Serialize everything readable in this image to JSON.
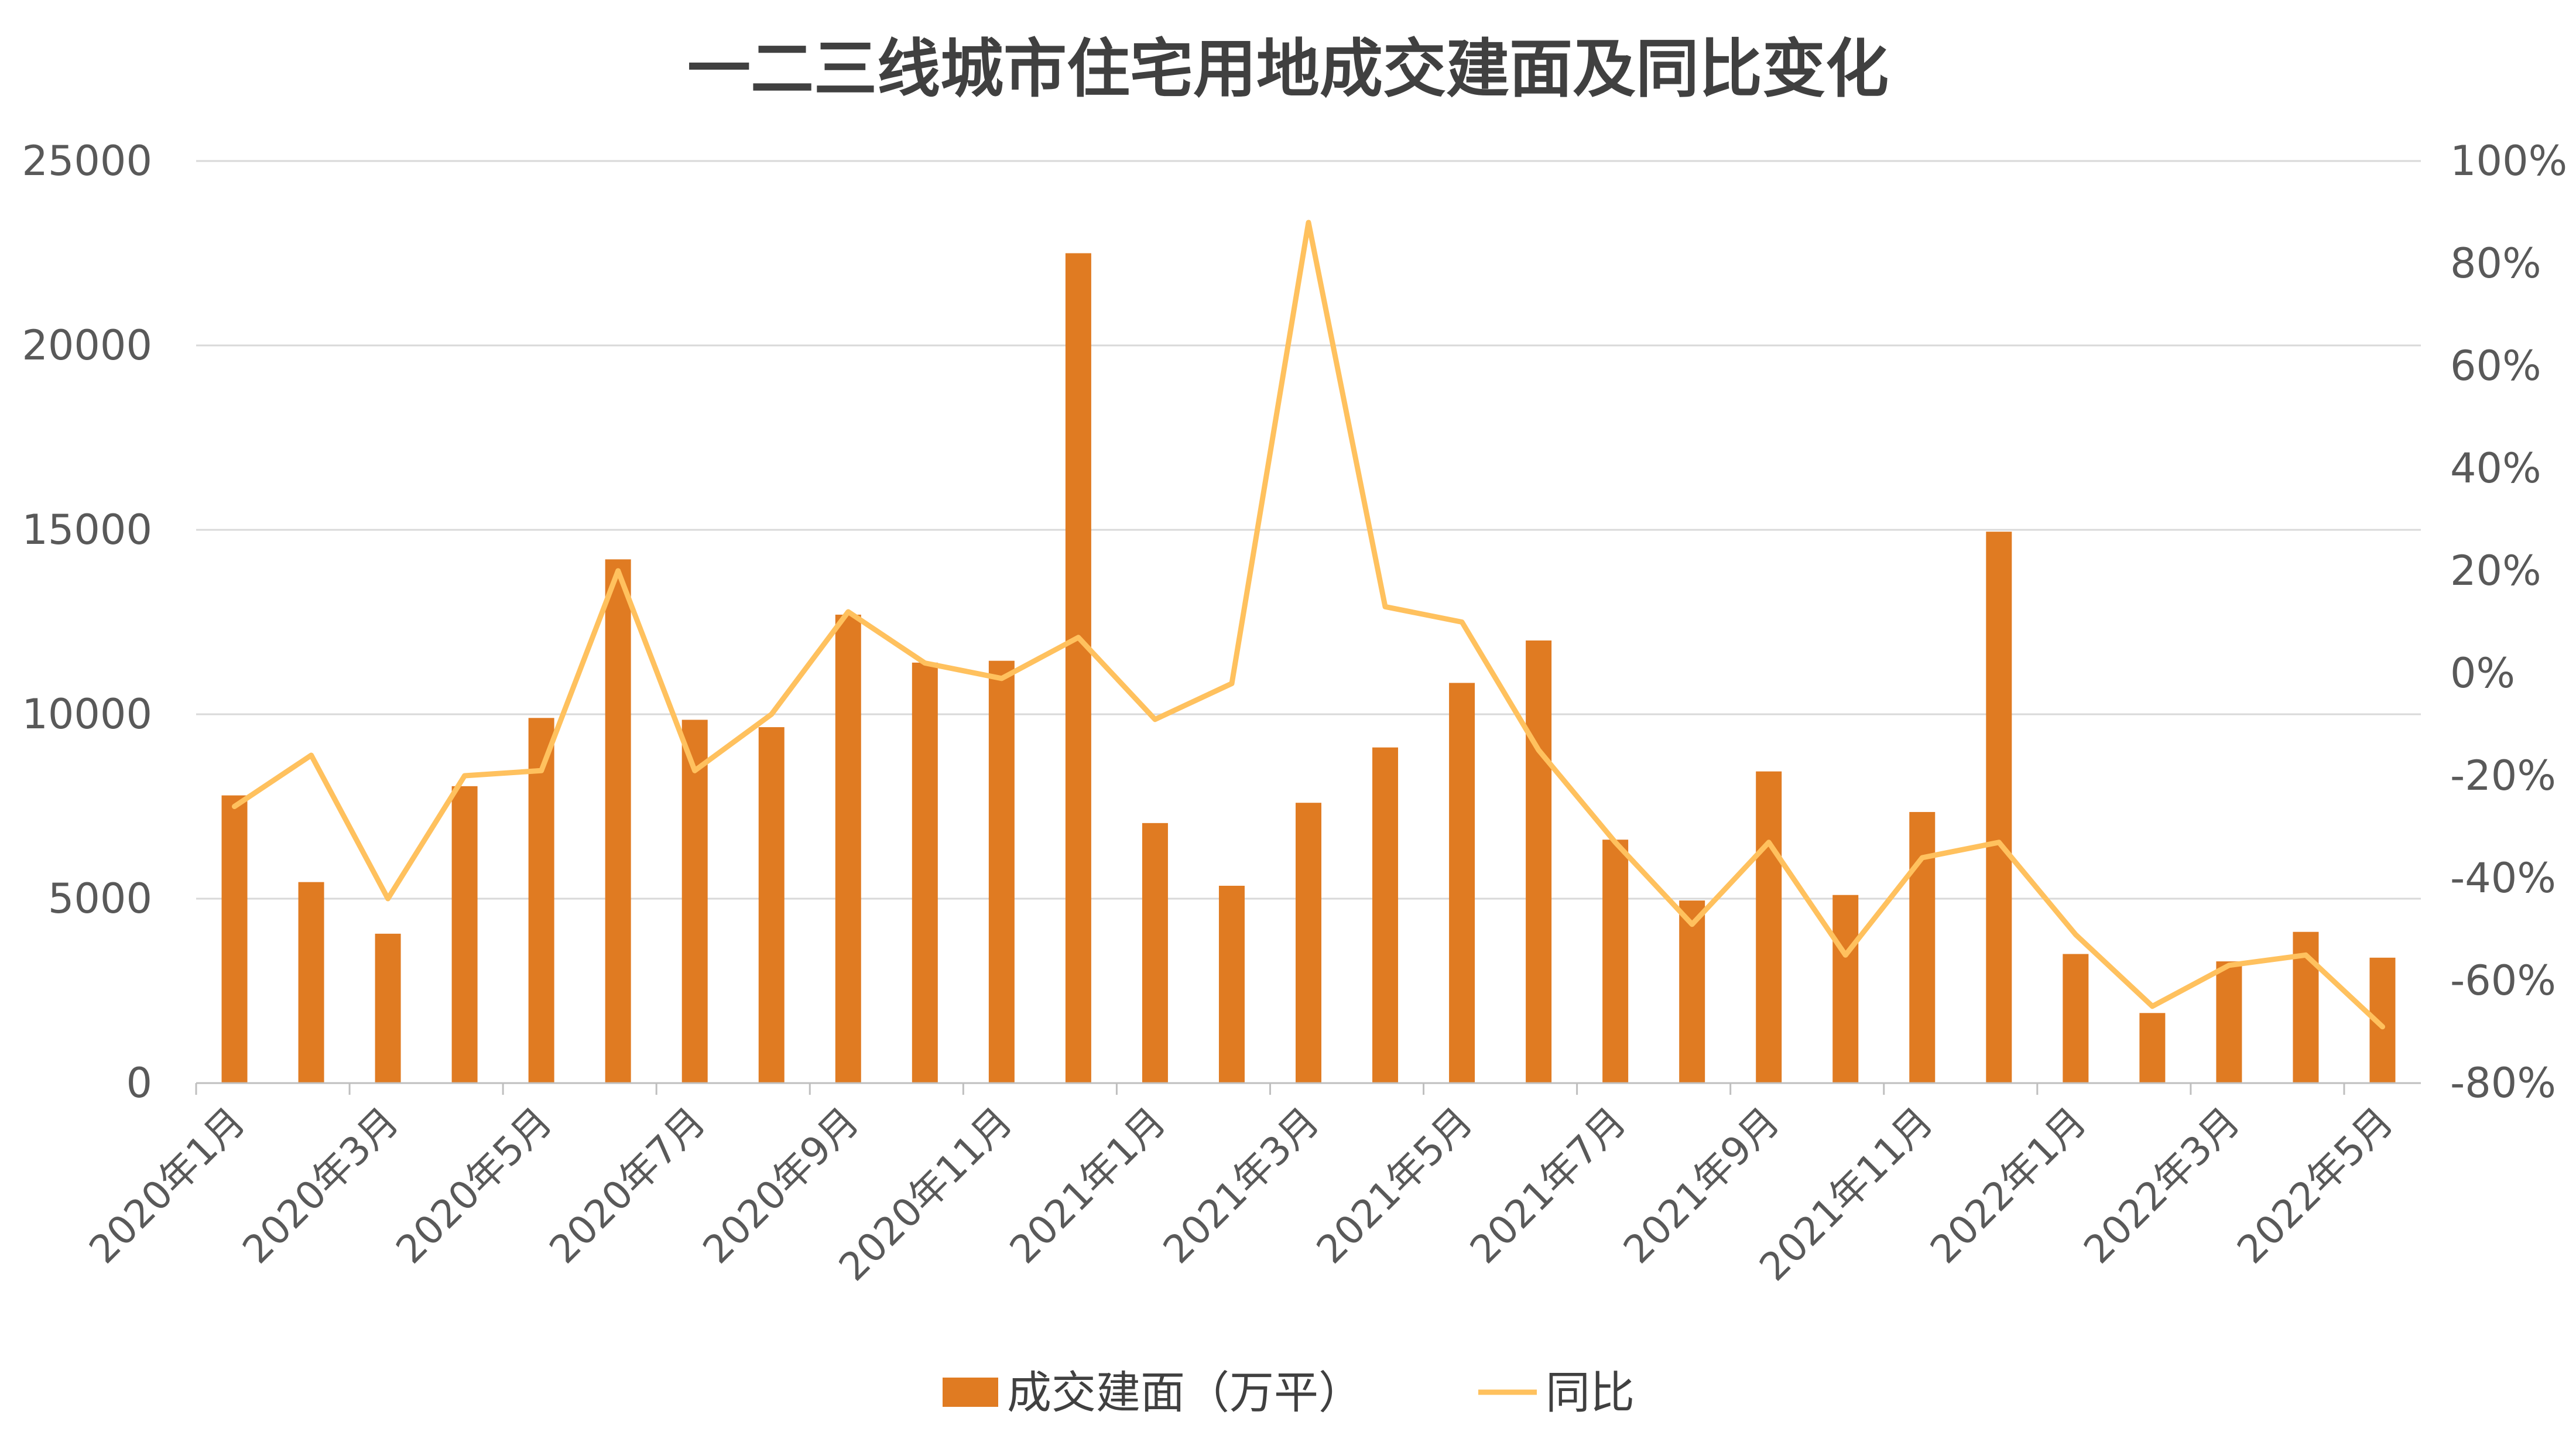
{
  "chart_data": {
    "type": "bar",
    "title": "一二三线城市住宅用地成交建面及同比变化",
    "categories": [
      "2020年1月",
      "2020年2月",
      "2020年3月",
      "2020年4月",
      "2020年5月",
      "2020年6月",
      "2020年7月",
      "2020年8月",
      "2020年9月",
      "2020年10月",
      "2020年11月",
      "2020年12月",
      "2021年1月",
      "2021年2月",
      "2021年3月",
      "2021年4月",
      "2021年5月",
      "2021年6月",
      "2021年7月",
      "2021年8月",
      "2021年9月",
      "2021年10月",
      "2021年11月",
      "2021年12月",
      "2022年1月",
      "2022年2月",
      "2022年3月",
      "2022年4月",
      "2022年5月"
    ],
    "x_tick_labels": [
      "2020年1月",
      "2020年3月",
      "2020年5月",
      "2020年7月",
      "2020年9月",
      "2020年11月",
      "2021年1月",
      "2021年3月",
      "2021年5月",
      "2021年7月",
      "2021年9月",
      "2021年11月",
      "2022年1月",
      "2022年3月",
      "2022年5月"
    ],
    "series": [
      {
        "name": "成交建面（万平）",
        "type": "bar",
        "axis": "left",
        "color": "#E07B22",
        "values": [
          7800,
          5450,
          4050,
          8050,
          9900,
          14200,
          9850,
          9650,
          12700,
          11400,
          11450,
          22500,
          7050,
          5350,
          7600,
          9100,
          10850,
          12000,
          6600,
          4950,
          8450,
          5100,
          7350,
          14950,
          3500,
          1900,
          3300,
          4100,
          3400
        ]
      },
      {
        "name": "同比",
        "type": "line",
        "axis": "right",
        "color": "#FFC15E",
        "values": [
          -26,
          -16,
          -44,
          -20,
          -19,
          20,
          -19,
          -8,
          12,
          2,
          -1,
          7,
          -9,
          -2,
          88,
          13,
          10,
          -15,
          -33,
          -49,
          -33,
          -55,
          -36,
          -33,
          -51,
          -65,
          -57,
          -55,
          -69
        ]
      }
    ],
    "y_left": {
      "min": 0,
      "max": 25000,
      "ticks": [
        "0",
        "5000",
        "10000",
        "15000",
        "20000",
        "25000"
      ]
    },
    "y_right": {
      "min": -80,
      "max": 100,
      "ticks": [
        "-80%",
        "-60%",
        "-40%",
        "-20%",
        "0%",
        "20%",
        "40%",
        "60%",
        "80%",
        "100%"
      ]
    },
    "grid": true,
    "legend": {
      "position": "bottom"
    }
  }
}
